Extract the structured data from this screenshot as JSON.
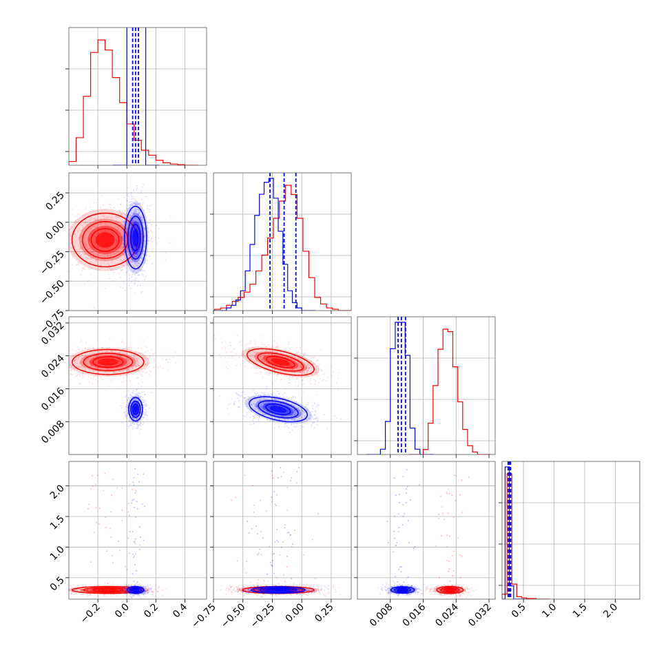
{
  "chart_data": {
    "type": "corner",
    "colors": {
      "red": "#ff0000",
      "blue": "#0000ff"
    },
    "grid": true,
    "series": [
      {
        "color": "#ff0000"
      },
      {
        "color": "#0000ff"
      }
    ],
    "parameters": [
      {
        "range": [
          -0.4,
          0.55
        ],
        "ticks": [
          {
            "value": -0.2,
            "label": "−0.2"
          },
          {
            "value": 0.0,
            "label": "0.0"
          },
          {
            "value": 0.2,
            "label": "0.2"
          },
          {
            "value": 0.4,
            "label": "0.4"
          }
        ]
      },
      {
        "range": [
          -0.75,
          0.42
        ],
        "ticks": [
          {
            "value": -0.75,
            "label": "−0.75"
          },
          {
            "value": -0.5,
            "label": "−0.50"
          },
          {
            "value": -0.25,
            "label": "−0.25"
          },
          {
            "value": 0.0,
            "label": "0.00"
          },
          {
            "value": 0.25,
            "label": "0.25"
          }
        ]
      },
      {
        "range": [
          0.0,
          0.0335
        ],
        "ticks": [
          {
            "value": 0.008,
            "label": "0.008"
          },
          {
            "value": 0.016,
            "label": "0.016"
          },
          {
            "value": 0.024,
            "label": "0.024"
          },
          {
            "value": 0.032,
            "label": "0.032"
          }
        ]
      },
      {
        "range": [
          0.15,
          2.4
        ],
        "ticks": [
          {
            "value": 0.5,
            "label": "0.5"
          },
          {
            "value": 1.0,
            "label": "1.0"
          },
          {
            "value": 1.5,
            "label": "1.5"
          },
          {
            "value": 2.0,
            "label": "2.0"
          }
        ]
      }
    ],
    "diagonal": [
      {
        "red_hist": {
          "start": -0.4,
          "bin": 0.05,
          "values": [
            0.03,
            0.22,
            0.55,
            0.9,
            1.0,
            0.92,
            0.7,
            0.5,
            0.33,
            0.2,
            0.12,
            0.08,
            0.04,
            0.02,
            0.01,
            0.005
          ]
        },
        "blue_hist": {
          "start": -0.0,
          "bin": 0.13,
          "values": [
            4.0
          ]
        },
        "blue_quantiles": [
          0.04,
          0.06,
          0.08
        ]
      },
      {
        "red_hist": {
          "start": -0.74,
          "bin": 0.05,
          "values": [
            0.01,
            0.02,
            0.04,
            0.07,
            0.1,
            0.14,
            0.2,
            0.3,
            0.42,
            0.55,
            0.7,
            0.83,
            0.95,
            0.88,
            0.7,
            0.45,
            0.25,
            0.1,
            0.05,
            0.02,
            0.01
          ]
        },
        "blue_hist": {
          "start": -0.64,
          "bin": 0.04,
          "values": [
            0.02,
            0.04,
            0.08,
            0.15,
            0.3,
            0.5,
            0.72,
            0.88,
            0.97,
            1.0,
            0.85,
            0.6,
            0.35,
            0.15,
            0.06,
            0.02
          ]
        },
        "blue_quantiles": [
          -0.27,
          -0.15,
          -0.05
        ]
      },
      {
        "red_hist": {
          "start": 0.016,
          "bin": 0.0012,
          "values": [
            0.04,
            0.25,
            0.55,
            0.84,
            1.0,
            0.98,
            0.7,
            0.42,
            0.2,
            0.07,
            0.02
          ]
        },
        "blue_hist": {
          "start": 0.0056,
          "bin": 0.0012,
          "values": [
            0.04,
            0.25,
            0.8,
            1.0,
            1.0,
            0.75,
            0.2,
            0.04
          ]
        },
        "blue_quantiles": [
          0.0099,
          0.0107,
          0.0117
        ]
      },
      {
        "red_hist": {
          "start": 0.15,
          "bin": 0.08,
          "values": [
            0.04,
            1.0,
            0.12,
            0.02,
            0.01,
            0.005,
            0.005
          ]
        },
        "blue_hist": {
          "start": 0.2,
          "bin": 0.07,
          "values": [
            1.0,
            0.1
          ]
        },
        "blue_quantiles": [
          0.25,
          0.27,
          0.29
        ]
      }
    ],
    "pairs": [
      {
        "col": 0,
        "row": 1,
        "red": {
          "mean": [
            -0.15,
            -0.15
          ],
          "sd": [
            0.12,
            0.12
          ],
          "rho": 0.0
        },
        "blue": {
          "mean": [
            0.06,
            -0.13
          ],
          "sd": [
            0.04,
            0.14
          ],
          "rho": 0.0
        }
      },
      {
        "col": 0,
        "row": 2,
        "red": {
          "mean": [
            -0.13,
            0.0225
          ],
          "sd": [
            0.13,
            0.0016
          ],
          "rho": 0.0
        },
        "blue": {
          "mean": [
            0.06,
            0.011
          ],
          "sd": [
            0.025,
            0.0015
          ],
          "rho": 0.0
        }
      },
      {
        "col": 1,
        "row": 2,
        "red": {
          "mean": [
            -0.18,
            0.0225
          ],
          "sd": [
            0.15,
            0.0017
          ],
          "rho": -0.55
        },
        "blue": {
          "mean": [
            -0.2,
            0.011
          ],
          "sd": [
            0.13,
            0.0016
          ],
          "rho": -0.45
        }
      },
      {
        "col": 0,
        "row": 3,
        "red": {
          "mean": [
            -0.13,
            0.3
          ],
          "sd": [
            0.13,
            0.03
          ],
          "rho": 0.0
        },
        "blue": {
          "mean": [
            0.06,
            0.3
          ],
          "sd": [
            0.03,
            0.03
          ],
          "rho": 0.0
        }
      },
      {
        "col": 1,
        "row": 3,
        "red": {
          "mean": [
            -0.2,
            0.3
          ],
          "sd": [
            0.16,
            0.03
          ],
          "rho": 0.0
        },
        "blue": {
          "mean": [
            -0.2,
            0.3
          ],
          "sd": [
            0.12,
            0.028
          ],
          "rho": 0.0
        }
      },
      {
        "col": 2,
        "row": 3,
        "red": {
          "mean": [
            0.0225,
            0.3
          ],
          "sd": [
            0.0017,
            0.03
          ],
          "rho": 0.0
        },
        "blue": {
          "mean": [
            0.011,
            0.3
          ],
          "sd": [
            0.0015,
            0.028
          ],
          "rho": 0.0
        }
      }
    ]
  }
}
